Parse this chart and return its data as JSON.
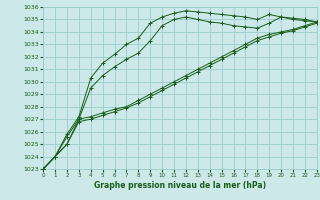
{
  "title": "Graphe pression niveau de la mer (hPa)",
  "bg_color": "#cce8e8",
  "grid_color": "#99cccc",
  "line_color": "#1a5c1a",
  "xlim": [
    0,
    23
  ],
  "ylim": [
    1023,
    1036
  ],
  "xticks": [
    0,
    1,
    2,
    3,
    4,
    5,
    6,
    7,
    8,
    9,
    10,
    11,
    12,
    13,
    14,
    15,
    16,
    17,
    18,
    19,
    20,
    21,
    22,
    23
  ],
  "yticks": [
    1023,
    1024,
    1025,
    1026,
    1027,
    1028,
    1029,
    1030,
    1031,
    1032,
    1033,
    1034,
    1035,
    1036
  ],
  "series": [
    {
      "x": [
        0,
        1,
        2,
        3,
        4,
        5,
        6,
        7,
        8,
        9,
        10,
        11,
        12,
        13,
        14,
        15,
        16,
        17,
        18,
        19,
        20,
        21,
        22,
        23
      ],
      "y": [
        1023.0,
        1024.0,
        1025.8,
        1027.2,
        1030.3,
        1031.5,
        1032.2,
        1033.0,
        1033.5,
        1034.7,
        1035.2,
        1035.5,
        1035.7,
        1035.6,
        1035.5,
        1035.4,
        1035.3,
        1035.2,
        1035.0,
        1035.4,
        1035.2,
        1035.1,
        1035.0,
        1034.8
      ]
    },
    {
      "x": [
        0,
        1,
        2,
        3,
        4,
        5,
        6,
        7,
        8,
        9,
        10,
        11,
        12,
        13,
        14,
        15,
        16,
        17,
        18,
        19,
        20,
        21,
        22,
        23
      ],
      "y": [
        1023.0,
        1024.0,
        1025.6,
        1027.0,
        1029.5,
        1030.5,
        1031.2,
        1031.8,
        1032.3,
        1033.3,
        1034.5,
        1035.0,
        1035.2,
        1035.0,
        1034.8,
        1034.7,
        1034.5,
        1034.4,
        1034.3,
        1034.7,
        1035.2,
        1035.0,
        1034.9,
        1034.8
      ]
    },
    {
      "x": [
        0,
        1,
        2,
        3,
        4,
        5,
        6,
        7,
        8,
        9,
        10,
        11,
        12,
        13,
        14,
        15,
        16,
        17,
        18,
        19,
        20,
        21,
        22,
        23
      ],
      "y": [
        1023.0,
        1024.0,
        1025.0,
        1027.0,
        1027.2,
        1027.5,
        1027.8,
        1028.0,
        1028.5,
        1029.0,
        1029.5,
        1030.0,
        1030.5,
        1031.0,
        1031.5,
        1032.0,
        1032.5,
        1033.0,
        1033.5,
        1033.8,
        1034.0,
        1034.2,
        1034.5,
        1034.8
      ]
    },
    {
      "x": [
        0,
        1,
        2,
        3,
        4,
        5,
        6,
        7,
        8,
        9,
        10,
        11,
        12,
        13,
        14,
        15,
        16,
        17,
        18,
        19,
        20,
        21,
        22,
        23
      ],
      "y": [
        1023.0,
        1024.0,
        1025.0,
        1026.8,
        1027.0,
        1027.3,
        1027.6,
        1027.9,
        1028.3,
        1028.8,
        1029.3,
        1029.8,
        1030.3,
        1030.8,
        1031.3,
        1031.8,
        1032.3,
        1032.8,
        1033.3,
        1033.6,
        1033.9,
        1034.1,
        1034.4,
        1034.7
      ]
    }
  ]
}
